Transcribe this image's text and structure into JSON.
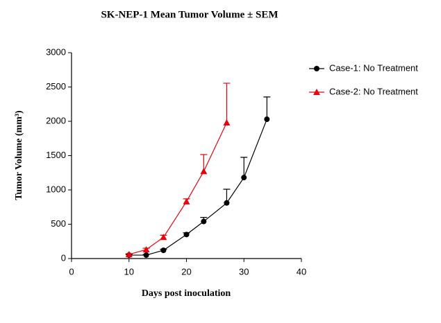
{
  "chart_data": {
    "type": "line",
    "title": "SK-NEP-1 Mean Tumor Volume ± SEM",
    "x_label": "Days post inoculation",
    "y_label": "Tumor Volume (mm³)",
    "xlim": [
      0,
      40
    ],
    "xticks": [
      0,
      10,
      20,
      30,
      40
    ],
    "ylim": [
      0,
      3000
    ],
    "yticks": [
      0,
      500,
      1000,
      1500,
      2000,
      2500,
      3000
    ],
    "legend_position": "right",
    "series": [
      {
        "name": "Case-1: No Treatment",
        "color": "#000000",
        "marker": "circle",
        "x": [
          10,
          13,
          16,
          20,
          23,
          27,
          30,
          34
        ],
        "values": [
          50,
          50,
          120,
          350,
          540,
          810,
          1180,
          2030
        ],
        "errors": [
          10,
          10,
          15,
          25,
          60,
          200,
          295,
          325
        ]
      },
      {
        "name": "Case-2: No Treatment",
        "color": "#e8000b",
        "marker": "triangle",
        "x": [
          10,
          13,
          16,
          20,
          23,
          27
        ],
        "values": [
          60,
          130,
          310,
          830,
          1270,
          1980
        ],
        "errors": [
          10,
          20,
          30,
          40,
          245,
          575
        ]
      }
    ]
  }
}
